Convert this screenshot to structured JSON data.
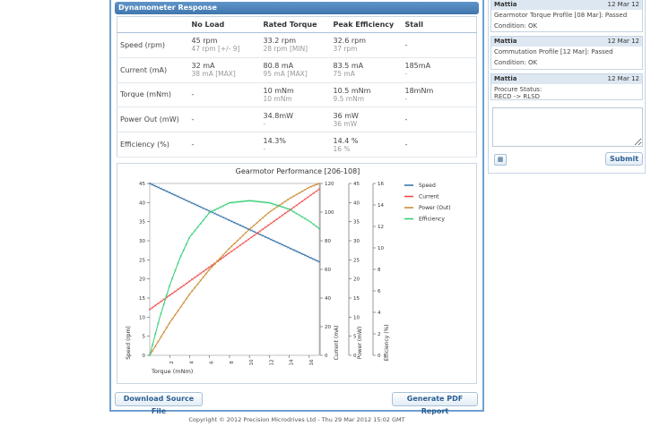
{
  "panel": {
    "header": "Dynamometer Response",
    "columns": [
      "",
      "No Load",
      "Rated Torque",
      "Peak Efficiency",
      "Stall"
    ],
    "rows": [
      {
        "label": "Speed (rpm)",
        "cells": [
          {
            "v": "45 rpm",
            "s": "47 rpm [+/- 9]"
          },
          {
            "v": "33.2 rpm",
            "s": "28 rpm [MIN]"
          },
          {
            "v": "32.6 rpm",
            "s": "37 rpm"
          },
          {
            "v": "-",
            "s": ""
          }
        ]
      },
      {
        "label": "Current (mA)",
        "cells": [
          {
            "v": "32 mA",
            "s": "38 mA [MAX]"
          },
          {
            "v": "80.8 mA",
            "s": "95 mA [MAX]"
          },
          {
            "v": "83.5 mA",
            "s": "75 mA"
          },
          {
            "v": "185mA",
            "s": "-"
          }
        ]
      },
      {
        "label": "Torque (mNm)",
        "cells": [
          {
            "v": "-",
            "s": ""
          },
          {
            "v": "10 mNm",
            "s": "10 mNm"
          },
          {
            "v": "10.5 mNm",
            "s": "9.5 mNm"
          },
          {
            "v": "18mNm",
            "s": "-"
          }
        ]
      },
      {
        "label": "Power Out (mW)",
        "cells": [
          {
            "v": "-",
            "s": ""
          },
          {
            "v": "34.8mW",
            "s": "-"
          },
          {
            "v": "36 mW",
            "s": "36 mW"
          },
          {
            "v": "-",
            "s": ""
          }
        ]
      },
      {
        "label": "Efficiency (%)",
        "cells": [
          {
            "v": "-",
            "s": ""
          },
          {
            "v": "14.3%",
            "s": "-"
          },
          {
            "v": "14.4 %",
            "s": "16 %"
          },
          {
            "v": "-",
            "s": ""
          }
        ]
      }
    ],
    "download_label": "Download Source File",
    "pdf_label": "Generate PDF Report"
  },
  "chart_data": {
    "type": "line",
    "title": "Gearmotor Performance [206-108]",
    "xlabel": "Torque (mNm)",
    "x_ticks": [
      2,
      4,
      6,
      8,
      10,
      12,
      14,
      16
    ],
    "xlim": [
      0,
      17
    ],
    "axes": [
      {
        "label": "Speed (rpm)",
        "ylim": [
          0,
          45
        ],
        "ticks": [
          0,
          5,
          10,
          15,
          20,
          25,
          30,
          35,
          40,
          45
        ]
      },
      {
        "label": "Current (mA)",
        "ylim": [
          0,
          120
        ],
        "ticks": [
          0,
          20,
          40,
          60,
          80,
          100,
          120
        ]
      },
      {
        "label": "Power (mW)",
        "ylim": [
          0,
          45
        ],
        "ticks": [
          0,
          5,
          10,
          15,
          20,
          25,
          30,
          35,
          40,
          45
        ]
      },
      {
        "label": "Efficiency (%)",
        "ylim": [
          0,
          16
        ],
        "ticks": [
          0,
          2,
          4,
          6,
          8,
          10,
          12,
          14,
          16
        ]
      }
    ],
    "series": [
      {
        "name": "Speed",
        "color": "#2e6da4",
        "axis": 0,
        "x": [
          0,
          17
        ],
        "values": [
          45,
          24.5
        ]
      },
      {
        "name": "Current",
        "color": "#ef4444",
        "axis": 1,
        "x": [
          0,
          17
        ],
        "values": [
          32,
          116
        ]
      },
      {
        "name": "Power (Out)",
        "color": "#c8862a",
        "axis": 2,
        "x": [
          0,
          2,
          4,
          6,
          8,
          10,
          12,
          14,
          16,
          17
        ],
        "values": [
          0,
          8.5,
          16,
          22.5,
          28,
          33,
          37.5,
          41,
          44,
          45
        ]
      },
      {
        "name": "Efficiency",
        "color": "#2ecc71",
        "axis": 3,
        "x": [
          0,
          1,
          2,
          3,
          4,
          6,
          8,
          10,
          12,
          14,
          16,
          17
        ],
        "values": [
          0,
          3.5,
          6.5,
          9,
          11,
          13.3,
          14.2,
          14.4,
          14.2,
          13.6,
          12.5,
          11.8
        ]
      }
    ],
    "legend": "top-right"
  },
  "sidebar": {
    "comments": [
      {
        "author": "Mattia",
        "date": "12 Mar 12",
        "lines": [
          "Gearmotor Torque Profile [08 Mar]: Passed",
          "Condition: OK"
        ]
      },
      {
        "author": "Mattia",
        "date": "12 Mar 12",
        "lines": [
          "Commutation Profile [12 Mar]: Passed",
          "Condition: OK"
        ]
      },
      {
        "author": "Mattia",
        "date": "12 Mar 12",
        "lines": [
          "Procure Status:",
          "RECD -> RLSD"
        ]
      }
    ],
    "submit_label": "Submit"
  },
  "footer": "Copyright © 2012 Precision Microdrives Ltd - Thu 29 Mar 2012 15:02 GMT"
}
